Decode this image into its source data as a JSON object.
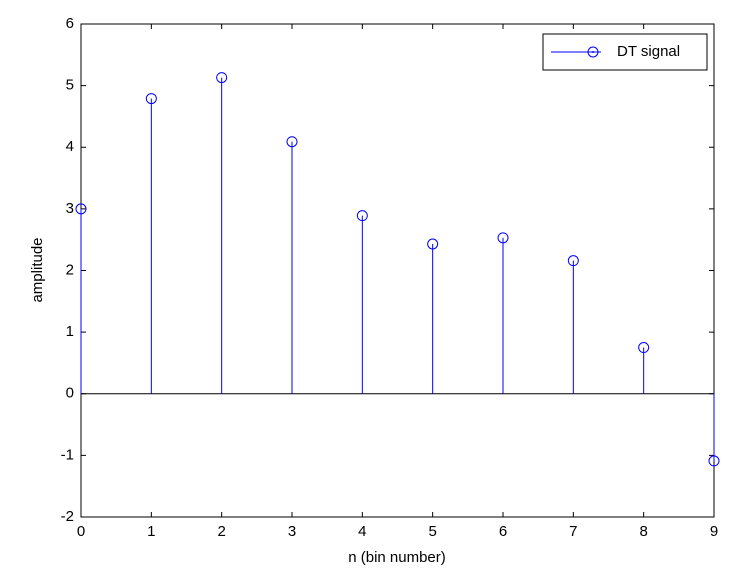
{
  "chart_data": {
    "type": "stem",
    "x_label": "n (bin number)",
    "y_label": "amplitude",
    "x": [
      0,
      1,
      2,
      3,
      4,
      5,
      6,
      7,
      8,
      9
    ],
    "series": [
      {
        "name": "DT signal",
        "color": "#0000ff",
        "values": [
          3.0,
          4.79,
          5.13,
          4.09,
          2.89,
          2.43,
          2.53,
          2.16,
          0.75,
          -1.09
        ]
      }
    ],
    "xlim": [
      0,
      9
    ],
    "xticks": [
      0,
      1,
      2,
      3,
      4,
      5,
      6,
      7,
      8,
      9
    ],
    "ylim": [
      -2,
      6
    ],
    "yticks": [
      -2,
      -1,
      0,
      1,
      2,
      3,
      4,
      5,
      6
    ],
    "grid": false,
    "legend": "northeast"
  }
}
